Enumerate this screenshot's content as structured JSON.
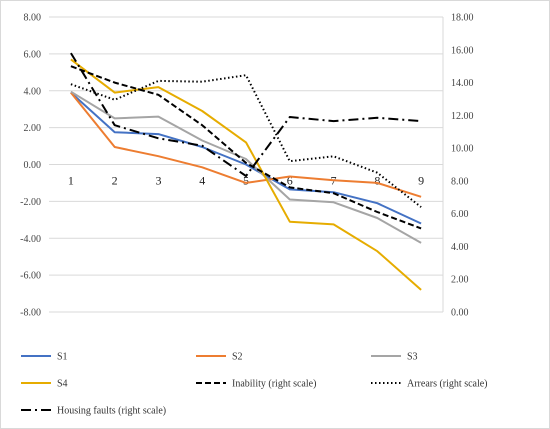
{
  "chart_data": {
    "type": "line",
    "categories": [
      "1",
      "2",
      "3",
      "4",
      "5",
      "6",
      "7",
      "8",
      "9"
    ],
    "left_axis": {
      "min": -8,
      "max": 8,
      "step": 2,
      "tick_labels": [
        "-8.00",
        "-6.00",
        "-4.00",
        "-2.00",
        "0.00",
        "2.00",
        "4.00",
        "6.00",
        "8.00"
      ]
    },
    "right_axis": {
      "min": 0,
      "max": 18,
      "step": 2,
      "tick_labels": [
        "0.00",
        "2.00",
        "4.00",
        "6.00",
        "8.00",
        "10.00",
        "12.00",
        "14.00",
        "16.00",
        "18.00"
      ]
    },
    "grid": "horizontal",
    "legend_position": "bottom",
    "series": [
      {
        "name": "S1",
        "axis": "left",
        "color": "#4472c4",
        "dash": "solid",
        "values": [
          3.9,
          1.75,
          1.65,
          0.95,
          0.0,
          -1.35,
          -1.5,
          -2.1,
          -3.2
        ]
      },
      {
        "name": "S2",
        "axis": "left",
        "color": "#ed7d31",
        "dash": "solid",
        "values": [
          3.9,
          0.95,
          0.45,
          -0.15,
          -1.0,
          -0.65,
          -0.85,
          -1.0,
          -1.75
        ]
      },
      {
        "name": "S3",
        "axis": "left",
        "color": "#a5a5a5",
        "dash": "solid",
        "values": [
          3.95,
          2.5,
          2.6,
          1.3,
          0.3,
          -1.9,
          -2.05,
          -2.9,
          -4.25
        ]
      },
      {
        "name": "S4",
        "axis": "left",
        "color": "#e6ac00",
        "dash": "solid",
        "values": [
          5.7,
          3.9,
          4.2,
          2.9,
          1.2,
          -3.1,
          -3.25,
          -4.7,
          -6.8
        ]
      },
      {
        "name": "Inability (right scale)",
        "axis": "right",
        "color": "#000000",
        "dash": "dashed",
        "values": [
          15.0,
          14.0,
          13.25,
          11.4,
          9.1,
          7.6,
          7.25,
          6.1,
          5.1
        ]
      },
      {
        "name": "Arrears (right scale)",
        "axis": "right",
        "color": "#000000",
        "dash": "dotted",
        "values": [
          13.9,
          12.95,
          14.1,
          14.05,
          14.45,
          9.2,
          9.5,
          8.5,
          6.4
        ]
      },
      {
        "name": "Housing faults (right scale)",
        "axis": "right",
        "color": "#000000",
        "dash": "dashdot",
        "values": [
          15.8,
          11.4,
          10.6,
          10.15,
          8.3,
          11.9,
          11.65,
          11.85,
          11.65
        ]
      }
    ]
  }
}
